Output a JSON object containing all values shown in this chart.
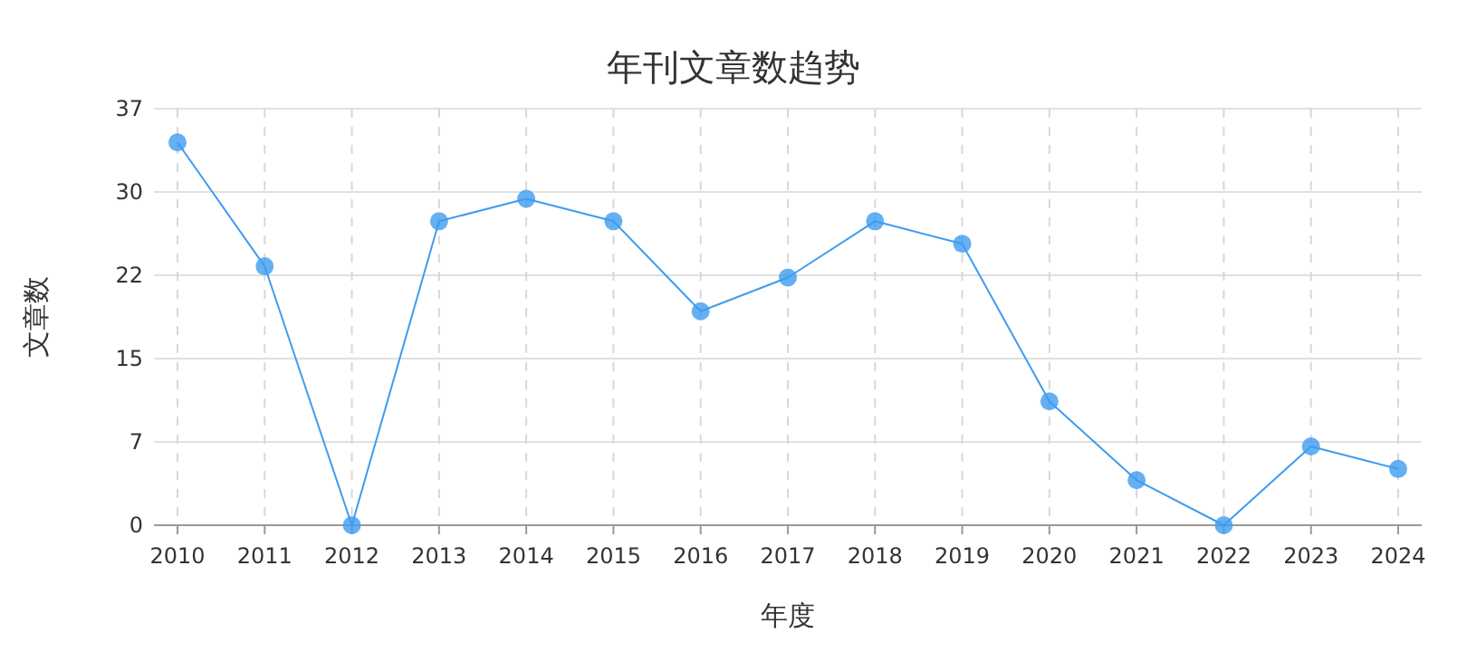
{
  "chart_data": {
    "type": "line",
    "title": "年刊文章数趋势",
    "xlabel": "年度",
    "ylabel": "文章数",
    "categories": [
      "2010",
      "2011",
      "2012",
      "2013",
      "2014",
      "2015",
      "2016",
      "2017",
      "2018",
      "2019",
      "2020",
      "2021",
      "2022",
      "2023",
      "2024"
    ],
    "values": [
      34,
      23,
      0,
      27,
      29,
      27,
      19,
      22,
      27,
      25,
      11,
      4,
      0,
      7,
      5
    ],
    "color": "#3d9cf0",
    "ylim": [
      0,
      37
    ],
    "yticks": [
      0,
      {
        "value": 7.4,
        "label": "7"
      },
      {
        "value": 14.8,
        "label": "15"
      },
      {
        "value": 22.2,
        "label": "22"
      },
      {
        "value": 29.6,
        "label": "30"
      },
      37
    ],
    "grid": true,
    "marker": "circle",
    "line_style": "solid"
  }
}
